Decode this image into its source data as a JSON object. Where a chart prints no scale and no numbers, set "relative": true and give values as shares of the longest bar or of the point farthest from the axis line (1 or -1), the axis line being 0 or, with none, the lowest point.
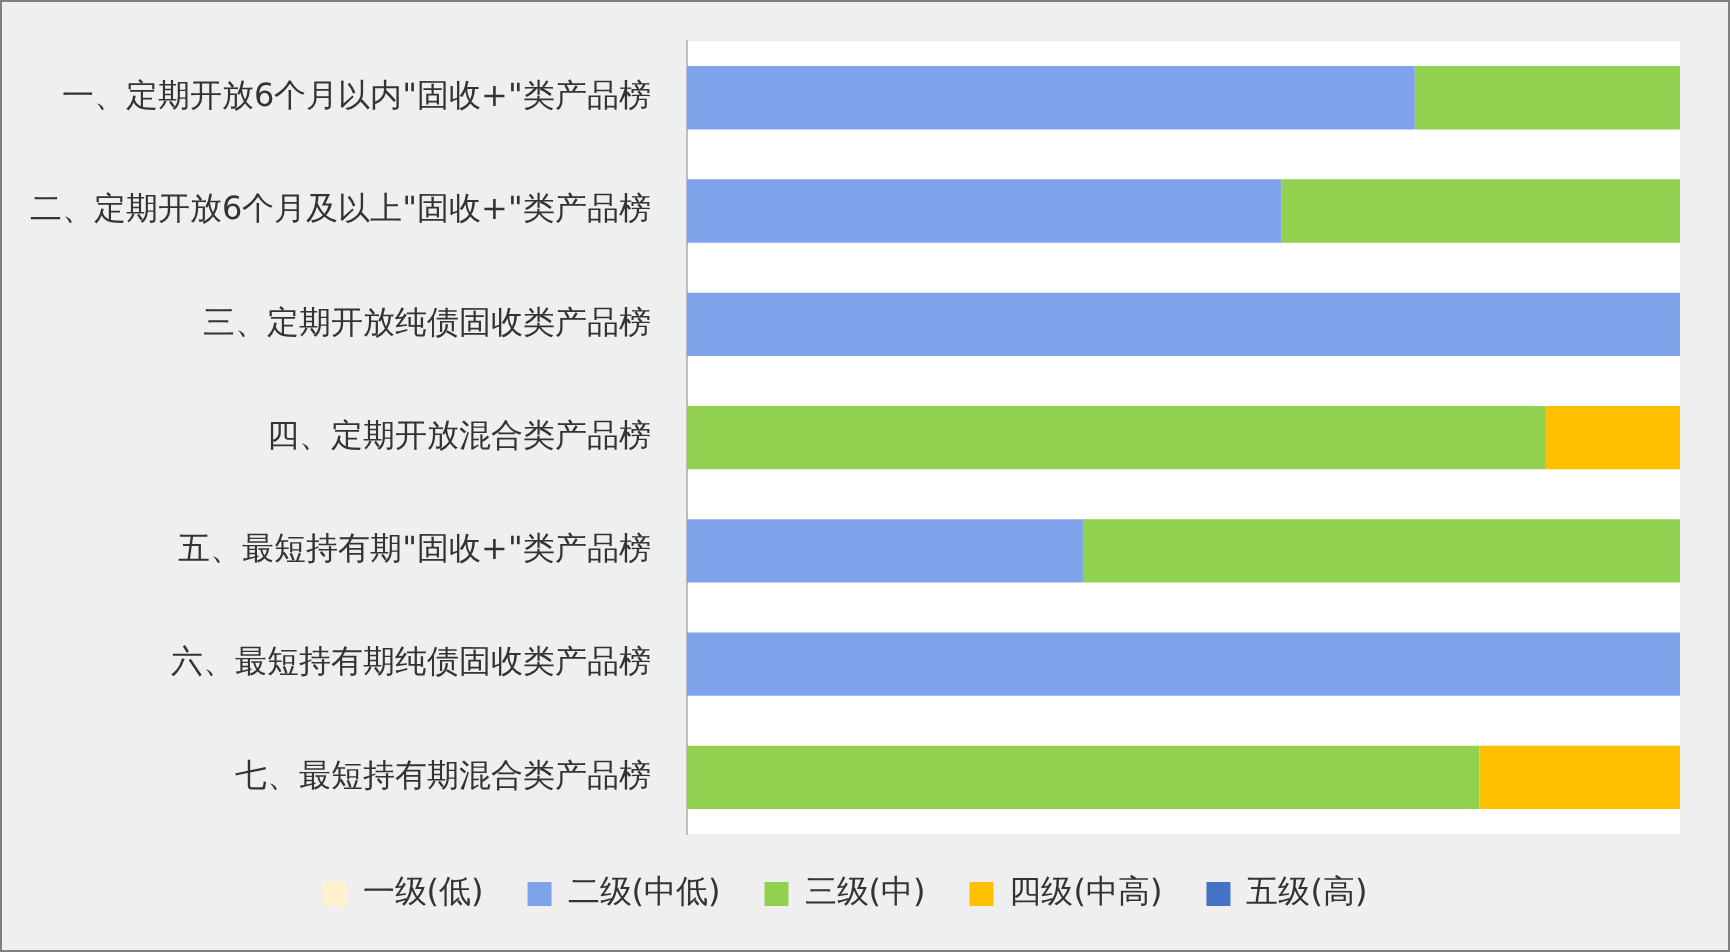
{
  "chart_data": {
    "type": "bar",
    "orientation": "horizontal",
    "stacked": true,
    "relative": true,
    "legend": "bottom",
    "categories": [
      "一、定期开放6个月以内\"固收+\"类产品榜",
      "二、定期开放6个月及以上\"固收+\"类产品榜",
      "三、定期开放纯债固收类产品榜",
      "四、定期开放混合类产品榜",
      "五、最短持有期\"固收+\"类产品榜",
      "六、最短持有期纯债固收类产品榜",
      "七、最短持有期混合类产品榜"
    ],
    "series": [
      {
        "name": "一级(低)",
        "color": "#fff2cc",
        "values": [
          0,
          0,
          0,
          0,
          0,
          0,
          0
        ]
      },
      {
        "name": "二级(中低)",
        "color": "#7ea3ea",
        "values": [
          0.733,
          0.599,
          1,
          0,
          0.399,
          1,
          0
        ]
      },
      {
        "name": "三级(中)",
        "color": "#92d050",
        "values": [
          0.267,
          0.401,
          0,
          0.865,
          0.601,
          0,
          0.798
        ]
      },
      {
        "name": "四级(中高)",
        "color": "#ffc000",
        "values": [
          0,
          0,
          0,
          0.135,
          0,
          0,
          0.202
        ]
      },
      {
        "name": "五级(高)",
        "color": "#4472c4",
        "values": [
          0,
          0,
          0,
          0,
          0,
          0,
          0
        ]
      }
    ]
  }
}
